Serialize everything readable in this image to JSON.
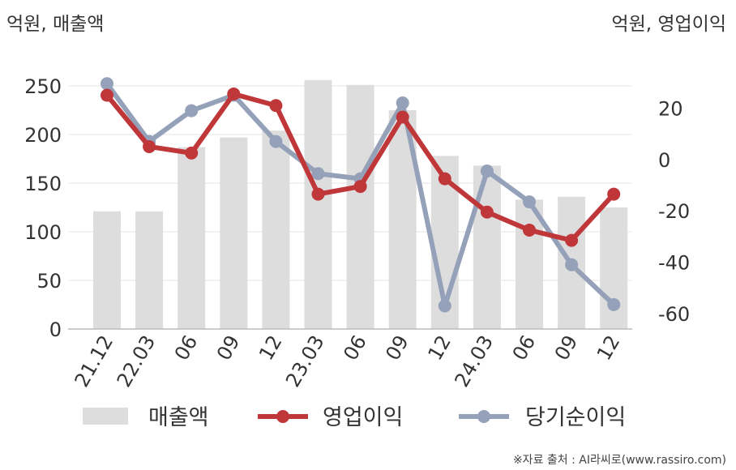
{
  "chart_data": {
    "type": "bar",
    "left_axis_title": "억원, 매출액",
    "right_axis_title": "억원, 영업이익",
    "categories": [
      "21.12",
      "22.03",
      "06",
      "09",
      "12",
      "23.03",
      "06",
      "09",
      "12",
      "24.03",
      "06",
      "09",
      "12"
    ],
    "y_left": {
      "ticks": [
        0,
        50,
        100,
        150,
        200,
        250
      ],
      "range": [
        0,
        280
      ]
    },
    "y_right": {
      "ticks": [
        20,
        0,
        -20,
        -40,
        -60
      ],
      "range": [
        -66,
        40
      ]
    },
    "series": [
      {
        "name": "매출액",
        "type": "bar",
        "axis": "left",
        "color": "#dddddd",
        "values": [
          121,
          121,
          187,
          197,
          204,
          256,
          251,
          225,
          178,
          168,
          133,
          136,
          125
        ]
      },
      {
        "name": "영업이익",
        "type": "line",
        "axis": "right",
        "color": "#c0373a",
        "values": [
          25,
          5,
          2.5,
          25.5,
          21,
          -13.5,
          -10.5,
          16.5,
          -7.5,
          -20.5,
          -27.5,
          -31.5,
          -13.5
        ]
      },
      {
        "name": "당기순이익",
        "type": "line",
        "axis": "right",
        "color": "#94a1b9",
        "values": [
          29.5,
          7,
          19,
          25,
          7,
          -5.5,
          -7.5,
          22,
          -57,
          -4.5,
          -16.5,
          -41,
          -56.5
        ]
      }
    ],
    "legend_position": "bottom",
    "grid": true
  },
  "source": "※자료 출처 : AI라씨로(www.rassiro.com)"
}
